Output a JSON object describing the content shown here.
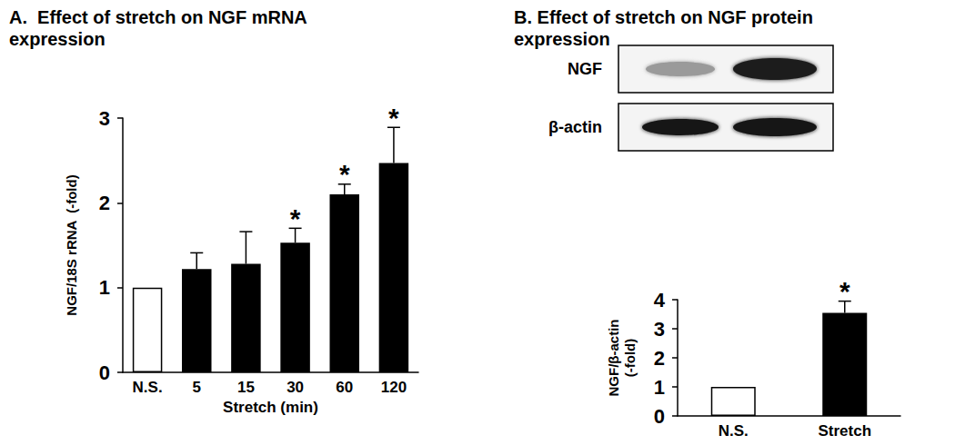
{
  "chart_data": [
    {
      "type": "bar",
      "title": "A.  Effect of stretch on NGF mRNA\nexpression",
      "categories": [
        "N.S.",
        "5",
        "15",
        "30",
        "60",
        "120"
      ],
      "values": [
        1,
        1.22,
        1.28,
        1.53,
        2.1,
        2.47
      ],
      "errors": [
        null,
        0.19,
        0.38,
        0.17,
        0.12,
        0.42
      ],
      "significance": [
        null,
        null,
        null,
        "*",
        "*",
        "*"
      ],
      "colors": [
        "#ffffff",
        "#000000",
        "#000000",
        "#000000",
        "#000000",
        "#000000"
      ],
      "x_label": "Stretch (min)",
      "y_label": "NGF/18S rRNA  (-fold)",
      "ylim": [
        0,
        3
      ],
      "yticks": [
        0,
        1,
        2,
        3
      ],
      "grid": false
    },
    {
      "type": "bar",
      "title": "B. Effect of stretch on NGF protein\nexpression",
      "blot_labels": [
        "NGF",
        "β-actin"
      ],
      "categories": [
        "N.S.",
        "Stretch"
      ],
      "values": [
        1,
        3.55
      ],
      "errors": [
        null,
        0.4
      ],
      "significance": [
        null,
        "*"
      ],
      "colors": [
        "#ffffff",
        "#000000"
      ],
      "y_label": "NGF/β-actin\n(-fold)",
      "ylim": [
        0,
        4
      ],
      "yticks": [
        0,
        1,
        2,
        3,
        4
      ],
      "grid": false
    }
  ]
}
